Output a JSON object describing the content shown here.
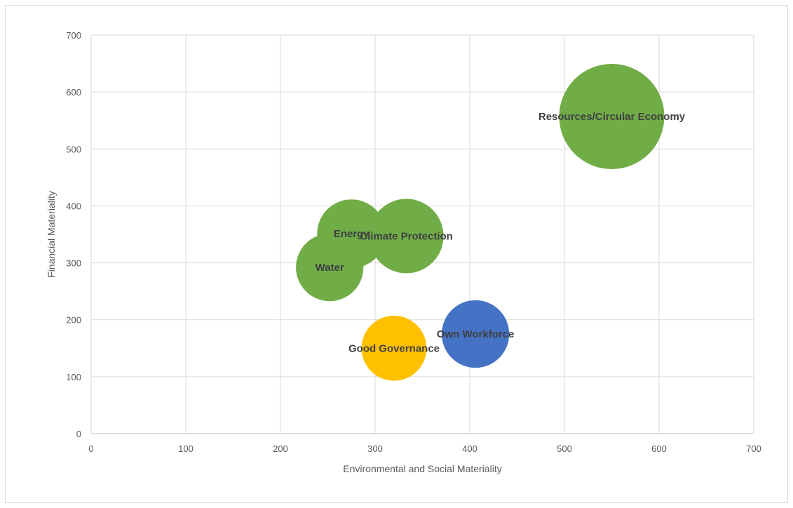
{
  "chart_data": {
    "type": "scatter",
    "subtype": "bubble",
    "title": "",
    "xlabel": "Environmental and Social Materiality",
    "ylabel": "Financial Materiality",
    "xlim": [
      0,
      700
    ],
    "ylim": [
      0,
      700
    ],
    "xticks": [
      0,
      100,
      200,
      300,
      400,
      500,
      600,
      700
    ],
    "yticks": [
      0,
      100,
      200,
      300,
      400,
      500,
      600,
      700
    ],
    "grid": true,
    "legend": "none",
    "points": [
      {
        "label": "Resources/Circular Economy",
        "x": 550,
        "y": 557,
        "size": 3.4,
        "color": "#70ad47"
      },
      {
        "label": "Energy",
        "x": 275,
        "y": 351,
        "size": 1.45,
        "color": "#70ad47"
      },
      {
        "label": "Climate Protection",
        "x": 333,
        "y": 347,
        "size": 1.7,
        "color": "#70ad47"
      },
      {
        "label": "Water",
        "x": 252,
        "y": 292,
        "size": 1.4,
        "color": "#70ad47"
      },
      {
        "label": "Own Workforce",
        "x": 406,
        "y": 175,
        "size": 1.4,
        "color": "#4472c4"
      },
      {
        "label": "Good Governance",
        "x": 320,
        "y": 150,
        "size": 1.3,
        "color": "#ffc000"
      }
    ]
  }
}
